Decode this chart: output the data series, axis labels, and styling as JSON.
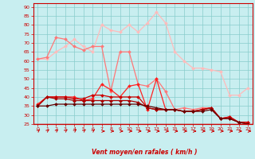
{
  "bg_color": "#c8eef0",
  "grid_color": "#88cccc",
  "xlabel": "Vent moyen/en rafales ( km/h )",
  "xlim": [
    -0.5,
    23.5
  ],
  "ylim": [
    25,
    92
  ],
  "yticks": [
    25,
    30,
    35,
    40,
    45,
    50,
    55,
    60,
    65,
    70,
    75,
    80,
    85,
    90
  ],
  "xticks": [
    0,
    1,
    2,
    3,
    4,
    5,
    6,
    7,
    8,
    9,
    10,
    11,
    12,
    13,
    14,
    15,
    16,
    17,
    18,
    19,
    20,
    21,
    22,
    23
  ],
  "series": [
    {
      "color": "#ffbbbb",
      "linewidth": 0.9,
      "marker": "D",
      "markersize": 2.0,
      "values": [
        61,
        61,
        65,
        68,
        72,
        68,
        65,
        80,
        77,
        76,
        80,
        76,
        81,
        87,
        81,
        65,
        60,
        56,
        56,
        55,
        54,
        41,
        41,
        45
      ]
    },
    {
      "color": "#ff7777",
      "linewidth": 0.9,
      "marker": "D",
      "markersize": 2.0,
      "values": [
        61,
        62,
        73,
        72,
        68,
        66,
        68,
        68,
        43,
        65,
        65,
        47,
        46,
        50,
        43,
        33,
        34,
        33,
        34,
        34,
        28,
        28,
        26,
        26
      ]
    },
    {
      "color": "#ff2222",
      "linewidth": 0.9,
      "marker": "D",
      "markersize": 2.0,
      "values": [
        36,
        40,
        40,
        40,
        40,
        38,
        39,
        47,
        44,
        40,
        46,
        47,
        33,
        50,
        33,
        33,
        32,
        32,
        33,
        34,
        28,
        29,
        26,
        26
      ]
    },
    {
      "color": "#cc0000",
      "linewidth": 0.9,
      "marker": "D",
      "markersize": 2.0,
      "values": [
        35,
        40,
        40,
        40,
        39,
        39,
        41,
        41,
        40,
        40,
        40,
        40,
        34,
        33,
        33,
        33,
        32,
        32,
        33,
        34,
        28,
        29,
        26,
        26
      ]
    },
    {
      "color": "#aa0000",
      "linewidth": 0.9,
      "marker": "D",
      "markersize": 2.0,
      "values": [
        35,
        40,
        39,
        39,
        38,
        38,
        38,
        38,
        38,
        38,
        38,
        37,
        34,
        33,
        33,
        33,
        32,
        32,
        33,
        34,
        28,
        28,
        26,
        25
      ]
    },
    {
      "color": "#660000",
      "linewidth": 0.9,
      "marker": "D",
      "markersize": 2.0,
      "values": [
        35,
        35,
        36,
        36,
        36,
        36,
        36,
        36,
        36,
        36,
        36,
        36,
        35,
        34,
        33,
        33,
        32,
        32,
        32,
        33,
        28,
        28,
        26,
        25
      ]
    }
  ],
  "xlabel_color": "#cc0000",
  "tick_color": "#cc0000",
  "axis_color": "#cc0000",
  "arrow_angles": [
    45,
    45,
    45,
    45,
    45,
    45,
    45,
    0,
    0,
    0,
    0,
    0,
    0,
    0,
    0,
    0,
    0,
    0,
    0,
    0,
    0,
    0,
    0,
    0
  ]
}
